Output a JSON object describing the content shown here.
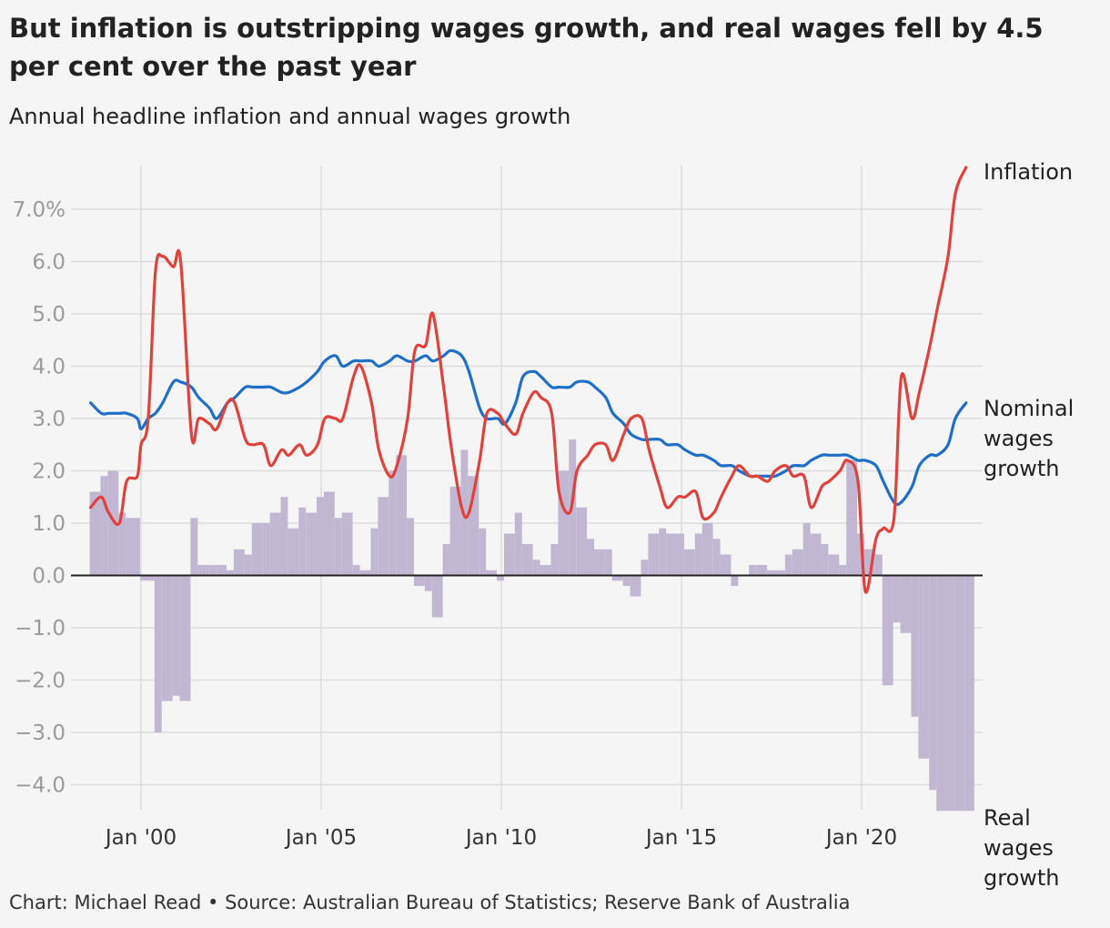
{
  "title": "But inflation is outstripping wages growth, and real wages fell by 4.5 per cent over the past year",
  "subtitle": "Annual headline inflation and annual wages growth",
  "source": "Chart: Michael Read • Source: Australian Bureau of Statistics; Reserve Bank of Australia",
  "colors": {
    "inflation": "#e0413b",
    "wages": "#1f6fc8",
    "real_wages": "#c2b7d3",
    "grid": "#dddddd",
    "zero_line": "#222222"
  },
  "chart_data": {
    "type": "line",
    "ylim": [
      -4.5,
      7.8
    ],
    "xlim": [
      1998.4,
      2022.9
    ],
    "grid": true,
    "y_ticks": [
      -4,
      -3,
      -2,
      -1,
      0,
      1,
      2,
      3,
      4,
      5,
      6,
      7
    ],
    "y_tick_labels": [
      "−4.0",
      "−3.0",
      "−2.0",
      "−1.0",
      "0.0",
      "1.0",
      "2.0",
      "3.0",
      "4.0",
      "5.0",
      "6.0",
      "7.0%"
    ],
    "x_ticks": [
      2000,
      2005,
      2010,
      2015,
      2020
    ],
    "x_tick_labels": [
      "Jan '00",
      "Jan '05",
      "Jan '10",
      "Jan '15",
      "Jan '20"
    ],
    "series": [
      {
        "name": "Inflation",
        "type": "line",
        "label_lines": [
          "Inflation"
        ],
        "x": [
          1998.6,
          1998.9,
          1999.1,
          1999.4,
          1999.6,
          1999.9,
          2000.0,
          2000.2,
          2000.4,
          2000.6,
          2000.9,
          2001.1,
          2001.4,
          2001.6,
          2001.9,
          2002.1,
          2002.4,
          2002.6,
          2002.9,
          2003.1,
          2003.4,
          2003.6,
          2003.9,
          2004.1,
          2004.4,
          2004.6,
          2004.9,
          2005.1,
          2005.4,
          2005.6,
          2005.9,
          2006.1,
          2006.4,
          2006.6,
          2006.9,
          2007.1,
          2007.4,
          2007.6,
          2007.9,
          2008.1,
          2008.4,
          2008.6,
          2008.9,
          2009.1,
          2009.4,
          2009.6,
          2009.9,
          2010.1,
          2010.4,
          2010.6,
          2010.9,
          2011.1,
          2011.4,
          2011.6,
          2011.9,
          2012.1,
          2012.4,
          2012.6,
          2012.9,
          2013.1,
          2013.4,
          2013.6,
          2013.9,
          2014.1,
          2014.4,
          2014.6,
          2014.9,
          2015.1,
          2015.4,
          2015.6,
          2015.9,
          2016.1,
          2016.4,
          2016.6,
          2016.9,
          2017.1,
          2017.4,
          2017.6,
          2017.9,
          2018.1,
          2018.4,
          2018.6,
          2018.9,
          2019.1,
          2019.4,
          2019.6,
          2019.9,
          2020.1,
          2020.4,
          2020.6,
          2020.9,
          2021.1,
          2021.4,
          2021.6,
          2021.9,
          2022.1,
          2022.4,
          2022.6,
          2022.9
        ],
        "values": [
          1.3,
          1.5,
          1.2,
          1.0,
          1.8,
          1.9,
          2.5,
          3.0,
          5.8,
          6.1,
          5.9,
          6.0,
          2.7,
          3.0,
          2.9,
          2.8,
          3.3,
          3.3,
          2.6,
          2.5,
          2.5,
          2.1,
          2.4,
          2.3,
          2.5,
          2.3,
          2.5,
          3.0,
          3.0,
          3.0,
          3.8,
          4.0,
          3.3,
          2.4,
          1.9,
          2.1,
          3.0,
          4.3,
          4.4,
          5.0,
          3.6,
          2.5,
          1.3,
          1.2,
          2.2,
          3.1,
          3.1,
          2.9,
          2.7,
          3.1,
          3.5,
          3.4,
          3.1,
          1.6,
          1.2,
          2.0,
          2.3,
          2.5,
          2.5,
          2.2,
          2.7,
          3.0,
          3.0,
          2.4,
          1.7,
          1.3,
          1.5,
          1.5,
          1.6,
          1.1,
          1.2,
          1.5,
          1.9,
          2.1,
          1.9,
          1.9,
          1.8,
          2.0,
          2.1,
          1.9,
          1.9,
          1.3,
          1.7,
          1.8,
          2.0,
          2.2,
          1.8,
          -0.3,
          0.7,
          0.9,
          1.1,
          3.8,
          3.0,
          3.5,
          4.4,
          5.1,
          6.1,
          7.3,
          7.8
        ]
      },
      {
        "name": "Nominal wages growth",
        "type": "line",
        "label_lines": [
          "Nominal",
          "wages",
          "growth"
        ],
        "x": [
          1998.6,
          1998.9,
          1999.1,
          1999.4,
          1999.6,
          1999.9,
          2000.0,
          2000.2,
          2000.4,
          2000.6,
          2000.9,
          2001.1,
          2001.4,
          2001.6,
          2001.9,
          2002.1,
          2002.4,
          2002.6,
          2002.9,
          2003.1,
          2003.4,
          2003.6,
          2003.9,
          2004.1,
          2004.4,
          2004.6,
          2004.9,
          2005.1,
          2005.4,
          2005.6,
          2005.9,
          2006.1,
          2006.4,
          2006.6,
          2006.9,
          2007.1,
          2007.4,
          2007.6,
          2007.9,
          2008.1,
          2008.4,
          2008.6,
          2008.9,
          2009.1,
          2009.4,
          2009.6,
          2009.9,
          2010.1,
          2010.4,
          2010.6,
          2010.9,
          2011.1,
          2011.4,
          2011.6,
          2011.9,
          2012.1,
          2012.4,
          2012.6,
          2012.9,
          2013.1,
          2013.4,
          2013.6,
          2013.9,
          2014.1,
          2014.4,
          2014.6,
          2014.9,
          2015.1,
          2015.4,
          2015.6,
          2015.9,
          2016.1,
          2016.4,
          2016.6,
          2016.9,
          2017.1,
          2017.4,
          2017.6,
          2017.9,
          2018.1,
          2018.4,
          2018.6,
          2018.9,
          2019.1,
          2019.4,
          2019.6,
          2019.9,
          2020.1,
          2020.4,
          2020.6,
          2020.9,
          2021.1,
          2021.4,
          2021.6,
          2021.9,
          2022.1,
          2022.4,
          2022.6,
          2022.9
        ],
        "values": [
          3.3,
          3.1,
          3.1,
          3.1,
          3.1,
          3.0,
          2.8,
          3.0,
          3.1,
          3.3,
          3.7,
          3.7,
          3.6,
          3.4,
          3.2,
          3.0,
          3.3,
          3.4,
          3.6,
          3.6,
          3.6,
          3.6,
          3.5,
          3.5,
          3.6,
          3.7,
          3.9,
          4.1,
          4.2,
          4.0,
          4.1,
          4.1,
          4.1,
          4.0,
          4.1,
          4.2,
          4.1,
          4.1,
          4.2,
          4.1,
          4.2,
          4.3,
          4.2,
          3.9,
          3.2,
          3.0,
          3.0,
          2.9,
          3.3,
          3.8,
          3.9,
          3.8,
          3.6,
          3.6,
          3.6,
          3.7,
          3.7,
          3.6,
          3.4,
          3.1,
          2.9,
          2.7,
          2.6,
          2.6,
          2.6,
          2.5,
          2.5,
          2.4,
          2.3,
          2.3,
          2.2,
          2.1,
          2.1,
          2.0,
          1.9,
          1.9,
          1.9,
          1.9,
          2.0,
          2.1,
          2.1,
          2.2,
          2.3,
          2.3,
          2.3,
          2.3,
          2.2,
          2.2,
          2.1,
          1.8,
          1.4,
          1.4,
          1.7,
          2.1,
          2.3,
          2.3,
          2.5,
          3.0,
          3.3
        ]
      },
      {
        "name": "Real wages growth",
        "type": "bar",
        "label_lines": [
          "Real",
          "wages",
          "growth"
        ],
        "x": [
          1998.6,
          1998.9,
          1999.1,
          1999.4,
          1999.6,
          1999.9,
          2000.0,
          2000.2,
          2000.4,
          2000.6,
          2000.9,
          2001.1,
          2001.4,
          2001.6,
          2001.9,
          2002.1,
          2002.4,
          2002.6,
          2002.9,
          2003.1,
          2003.4,
          2003.6,
          2003.9,
          2004.1,
          2004.4,
          2004.6,
          2004.9,
          2005.1,
          2005.4,
          2005.6,
          2005.9,
          2006.1,
          2006.4,
          2006.6,
          2006.9,
          2007.1,
          2007.4,
          2007.6,
          2007.9,
          2008.1,
          2008.4,
          2008.6,
          2008.9,
          2009.1,
          2009.4,
          2009.6,
          2009.9,
          2010.1,
          2010.4,
          2010.6,
          2010.9,
          2011.1,
          2011.4,
          2011.6,
          2011.9,
          2012.1,
          2012.4,
          2012.6,
          2012.9,
          2013.1,
          2013.4,
          2013.6,
          2013.9,
          2014.1,
          2014.4,
          2014.6,
          2014.9,
          2015.1,
          2015.4,
          2015.6,
          2015.9,
          2016.1,
          2016.4,
          2016.6,
          2016.9,
          2017.1,
          2017.4,
          2017.6,
          2017.9,
          2018.1,
          2018.4,
          2018.6,
          2018.9,
          2019.1,
          2019.4,
          2019.6,
          2019.9,
          2020.1,
          2020.4,
          2020.6,
          2020.9,
          2021.1,
          2021.4,
          2021.6,
          2021.9,
          2022.1,
          2022.4,
          2022.6,
          2022.9
        ],
        "values": [
          1.6,
          1.9,
          2.0,
          1.2,
          1.1,
          1.1,
          -0.1,
          -0.1,
          -3.0,
          -2.4,
          -2.3,
          -2.4,
          1.1,
          0.2,
          0.2,
          0.2,
          0.1,
          0.5,
          0.4,
          1.0,
          1.0,
          1.2,
          1.5,
          0.9,
          1.3,
          1.2,
          1.5,
          1.6,
          1.1,
          1.2,
          0.2,
          0.1,
          0.9,
          1.5,
          2.0,
          2.3,
          1.1,
          -0.2,
          -0.3,
          -0.8,
          0.6,
          1.7,
          2.4,
          1.9,
          0.9,
          0.1,
          -0.1,
          0.8,
          1.2,
          0.6,
          0.3,
          0.2,
          0.6,
          2.0,
          2.6,
          1.3,
          0.7,
          0.5,
          0.5,
          -0.1,
          -0.2,
          -0.4,
          0.3,
          0.8,
          0.9,
          0.8,
          0.8,
          0.5,
          0.8,
          1.0,
          0.7,
          0.4,
          -0.2,
          0.0,
          0.2,
          0.2,
          0.1,
          0.1,
          0.4,
          0.5,
          1.0,
          0.8,
          0.6,
          0.4,
          0.2,
          2.2,
          0.8,
          0.5,
          0.4,
          -2.1,
          -0.9,
          -1.1,
          -2.7,
          -3.5,
          -4.1,
          -4.5,
          -4.5,
          -4.5,
          -4.5
        ]
      }
    ]
  }
}
